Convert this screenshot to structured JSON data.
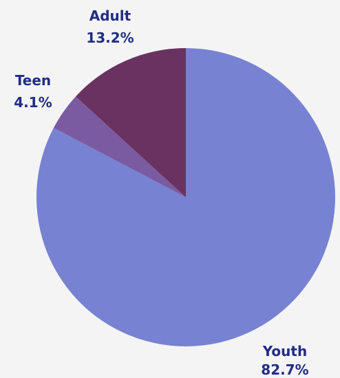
{
  "chart_data": {
    "type": "pie",
    "slices": [
      {
        "label": "Youth",
        "value": 82.7,
        "display": "82.7%",
        "color": "#7782d2"
      },
      {
        "label": "Teen",
        "value": 4.1,
        "display": "4.1%",
        "color": "#7a5ba1"
      },
      {
        "label": "Adult",
        "value": 13.2,
        "display": "13.2%",
        "color": "#693261"
      }
    ],
    "start_angle_deg": 0,
    "direction": "clockwise",
    "label_color": "#202c85",
    "background": "#f4f4f4"
  }
}
